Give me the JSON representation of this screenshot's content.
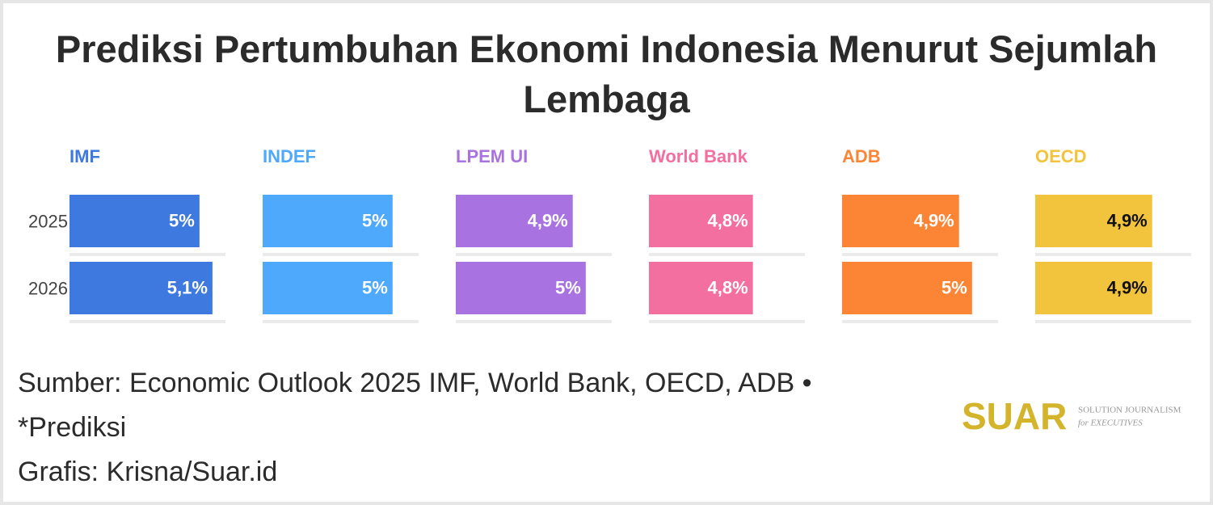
{
  "chart_data": {
    "type": "bar",
    "title": "Prediksi Pertumbuhan Ekonomi Indonesia Menurut Sejumlah Lembaga",
    "categories": [
      "2025",
      "2026"
    ],
    "xlim": [
      4,
      5.2
    ],
    "series": [
      {
        "name": "IMF",
        "color": "#3e79e0",
        "label_color": "#ffffff",
        "values": [
          5,
          5.1
        ],
        "value_labels": [
          "5%",
          "5,1%"
        ]
      },
      {
        "name": "INDEF",
        "color": "#4ea8fc",
        "label_color": "#ffffff",
        "values": [
          5,
          5
        ],
        "value_labels": [
          "5%",
          "5%"
        ]
      },
      {
        "name": "LPEM UI",
        "color": "#a873e0",
        "label_color": "#ffffff",
        "values": [
          4.9,
          5
        ],
        "value_labels": [
          "4,9%",
          "5%"
        ]
      },
      {
        "name": "World Bank",
        "color": "#f26f9f",
        "label_color": "#ffffff",
        "values": [
          4.8,
          4.8
        ],
        "value_labels": [
          "4,8%",
          "4,8%"
        ]
      },
      {
        "name": "ADB",
        "color": "#fb8535",
        "label_color": "#ffffff",
        "values": [
          4.9,
          5
        ],
        "value_labels": [
          "4,9%",
          "5%"
        ]
      },
      {
        "name": "OECD",
        "color": "#f2c43d",
        "label_color": "#111111",
        "values": [
          4.9,
          4.9
        ],
        "value_labels": [
          "4,9%",
          "4,9%"
        ]
      }
    ],
    "source": "Sumber: Economic Outlook 2025 IMF, World Bank, OECD, ADB • *Prediksi",
    "credit": "Grafis: Krisna/Suar.id",
    "logo": {
      "name": "SUAR",
      "line1": "SOLUTION JOURNALISM",
      "line2": "for EXECUTIVES"
    }
  }
}
